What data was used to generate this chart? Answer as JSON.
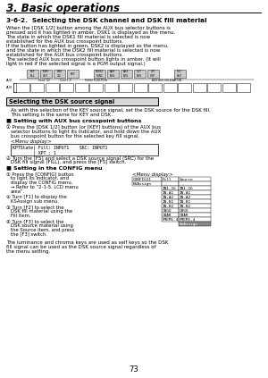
{
  "title": "3. Basic operations",
  "section": "3-6-2.  Selecting the DSK channel and DSK fill material",
  "body_text": [
    "When the [DSK 1/2] button among the AUX bus selector buttons is pressed and it has lighted in amber, DSK1 is displayed as the menu.",
    "The state in which the DSK1 fill material is selected is now established for the AUX bus crosspoint buttons.",
    "If the button has lighted in green, DSK2 is displayed as the menu, and the state in which the DSK2 fill material is selected is now established for the AUX bus crosspoint buttons.",
    "The selected AUX bus crosspoint button lights in amber. (It will light in red if the selected signal is a PGM output signal.)"
  ],
  "subsection_box": "Selecting the DSK source signal",
  "subsection_text": [
    "As with the selection of the KEY source signal, set the DSK source for the DSK fill.",
    "This setting is the same for KEY and DSK."
  ],
  "bullet1_title": "■ Setting with AUX bus crosspoint buttons",
  "step1": "① Press the [DSK 1/2] button (or [KEY] buttons) of the AUX bus selector buttons to light its indicator, and hold down the AUX bus crosspoint button for the selected key fill signal.",
  "menu_display1": "<Menu display>",
  "menu1_lines": [
    "KPTState| Fill: INPUT1    SRC: INPUT1",
    "        | XPT : 1"
  ],
  "step2": "② Turn the [F5] and select a DSK source signal (SRC) for the DSK fill signal (FILL), and press the [F5] switch.",
  "bullet2_title": "■ Setting in the CONFIG menu",
  "menu_display2": "<Menu display>",
  "config_steps": [
    "① Press the [CONFIG] button to light its indicator, and display the CONFIG menu.\n→ Refer to “2-1-5. LCD menu area”.",
    "② Turn [F1] to display the KSAssign sub menu.",
    "③ Turn [F2] to select the DSK fill material using the Fill item.",
    "④ Turn [F3] to select the DSK source material using the Source item, and press the [F3] switch."
  ],
  "footer_text": "The luminance and chroma keys are used as self keys so the DSK fill signal can be used as the DSK source signal regardless of the menu setting.",
  "page_num": "73",
  "bg_color": "#ffffff",
  "text_color": "#000000",
  "diagram_btn_labels_top": [
    "KEY\nFILL",
    "PGM\nOUT",
    "DSK\n1/2",
    "KEY",
    "KEY",
    "MENU",
    "AUX\nBUS",
    "AUX\nBUS",
    "CUT\nBUS",
    "XPT\nCOP",
    "IN",
    "CUT\nOUT"
  ],
  "diagram_labels_below": [
    "AUX",
    "Feed 1/2",
    "Conf 1-3",
    "MENU",
    "AUX BUS",
    "AUX BUS",
    "AUX BUS"
  ],
  "config_table": {
    "header": [
      "CONFIG11",
      "Fill",
      "Source",
      ""
    ],
    "row2": [
      "KSAssign",
      "-",
      "-",
      ""
    ],
    "items_col1": [
      "IN1-16",
      "IN-A1",
      "IN-A2",
      "IN-B1",
      "IN-B2",
      "CBGO",
      "CBAR",
      "PMEM1-4"
    ],
    "items_col2": [
      "IN1-16",
      "IN-A1",
      "IN-A2",
      "IN-B1",
      "IN-B2",
      "CBGO",
      "CBAR",
      "PMEM1-4"
    ],
    "last_item": "NoAssign"
  }
}
